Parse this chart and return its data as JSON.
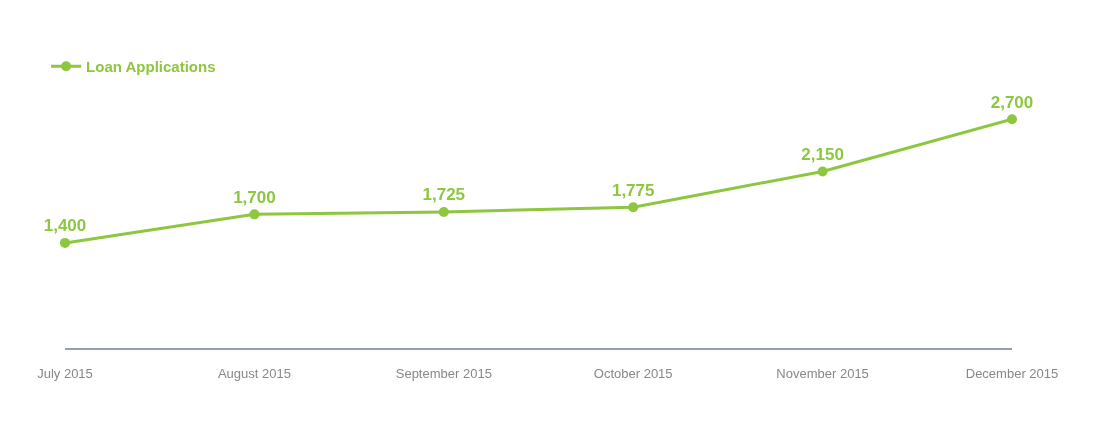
{
  "chart_data": {
    "type": "line",
    "categories": [
      "July 2015",
      "August 2015",
      "September 2015",
      "October 2015",
      "November 2015",
      "December 2015"
    ],
    "series": [
      {
        "name": "Loan Applications",
        "color": "#8dc63f",
        "values": [
          1400,
          1700,
          1725,
          1775,
          2150,
          2700
        ],
        "value_labels": [
          "1,400",
          "1,700",
          "1,725",
          "1,775",
          "2,150",
          "2,700"
        ]
      }
    ],
    "tick_labels": "x",
    "legend": "top left",
    "marker": "circle",
    "line_style": "solid"
  }
}
